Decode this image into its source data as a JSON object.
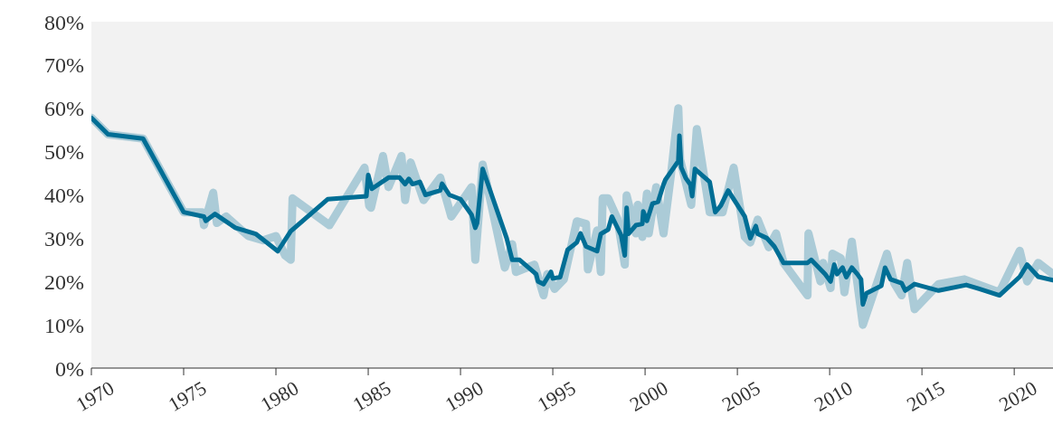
{
  "chart_data": {
    "type": "line",
    "xlim": [
      1970,
      2022.1
    ],
    "ylim": [
      0,
      80
    ],
    "xticks": [
      1970,
      1975,
      1980,
      1985,
      1990,
      1995,
      2000,
      2005,
      2010,
      2015,
      2020
    ],
    "yticks": [
      {
        "value": 0,
        "label": "0%"
      },
      {
        "value": 10,
        "label": "10%"
      },
      {
        "value": 20,
        "label": "20%"
      },
      {
        "value": 30,
        "label": "30%"
      },
      {
        "value": 40,
        "label": "40%"
      },
      {
        "value": 50,
        "label": "50%"
      },
      {
        "value": 60,
        "label": "60%"
      },
      {
        "value": 70,
        "label": "70%"
      },
      {
        "value": 80,
        "label": "80%"
      }
    ],
    "series": [
      {
        "color": "#abcbd7",
        "x": [
          1970,
          1970.9,
          1972.8,
          1975,
          1976,
          1976.1,
          1976.6,
          1976.8,
          1977.3,
          1978.5,
          1979.3,
          1980,
          1980.5,
          1980.8,
          1980.9,
          1982.9,
          1984.8,
          1985.05,
          1985.15,
          1985.8,
          1986.1,
          1986.8,
          1987,
          1987.3,
          1988,
          1988.9,
          1989.5,
          1990.6,
          1990.8,
          1991.2,
          1992.4,
          1992.8,
          1993,
          1994,
          1994.5,
          1994.7,
          1995.1,
          1995.6,
          1996.3,
          1996.8,
          1996.9,
          1997.4,
          1997.6,
          1997.7,
          1998,
          1998.5,
          1998.9,
          1999,
          1999.5,
          1999.6,
          1999.85,
          2000.1,
          2000.2,
          2000.6,
          2001,
          2001.4,
          2001.8,
          2001.9,
          2002.5,
          2002.8,
          2003.5,
          2004.2,
          2004.8,
          2005.4,
          2005.7,
          2006.1,
          2006.7,
          2007.1,
          2007.5,
          2008.8,
          2008.85,
          2009.5,
          2009.65,
          2010.05,
          2010.15,
          2010.6,
          2010.8,
          2011.2,
          2011.8,
          2013.1,
          2013.5,
          2013.9,
          2014.2,
          2014.6,
          2015.9,
          2017.3,
          2019.2,
          2020.3,
          2020.7,
          2021.3,
          2022.1
        ],
        "values": [
          57.8,
          54,
          53,
          36,
          36,
          33,
          40.5,
          33.5,
          35,
          30.5,
          29.5,
          30.5,
          26,
          25,
          39.2,
          33,
          46.3,
          37.5,
          37,
          49,
          41.8,
          49,
          38.8,
          47.5,
          38.8,
          44,
          35,
          41.8,
          25,
          47,
          23.2,
          28.6,
          22.2,
          23.9,
          16.8,
          21.7,
          18.3,
          20.5,
          33.9,
          33.3,
          22.8,
          31.8,
          22.2,
          39.2,
          39.2,
          34.5,
          23.9,
          39.9,
          31.1,
          37.7,
          30.3,
          40.3,
          31.1,
          41.8,
          31.1,
          44.6,
          60,
          48.2,
          37.7,
          55.2,
          36,
          36,
          46.3,
          30.3,
          29,
          34.3,
          27.9,
          31.1,
          24.3,
          16.8,
          31.1,
          20,
          24.3,
          18.5,
          26.4,
          25.4,
          17.5,
          29.2,
          10,
          26.4,
          19.6,
          16.8,
          24.3,
          13.6,
          19.4,
          20.5,
          17.5,
          27.1,
          20,
          24.3,
          21.7
        ]
      },
      {
        "color": "#006e95",
        "x": [
          1970,
          1970.9,
          1972.8,
          1975,
          1976.1,
          1976.2,
          1976.7,
          1977.8,
          1978.9,
          1980.1,
          1980.8,
          1982.8,
          1984.9,
          1985,
          1985.2,
          1986.1,
          1986.7,
          1987,
          1987.2,
          1987.4,
          1987.8,
          1988.1,
          1988.9,
          1989,
          1989.4,
          1990,
          1990.6,
          1990.8,
          1990.9,
          1991.2,
          1992.5,
          1992.8,
          1993.2,
          1994.1,
          1994.2,
          1994.5,
          1994.9,
          1995,
          1995.4,
          1995.8,
          1996.3,
          1996.5,
          1996.8,
          1997.4,
          1997.6,
          1998,
          1998.2,
          1998.7,
          1998.9,
          1999,
          1999.1,
          1999.5,
          1999.85,
          1999.9,
          2000.1,
          2000.4,
          2000.7,
          2001,
          2001.1,
          2001.8,
          2001.86,
          2001.96,
          2002.2,
          2002.45,
          2002.55,
          2002.7,
          2003.5,
          2003.8,
          2004.1,
          2004.5,
          2005.4,
          2005.7,
          2006,
          2006.1,
          2006.6,
          2007,
          2007.5,
          2008.8,
          2009,
          2009.75,
          2010.05,
          2010.25,
          2010.4,
          2010.7,
          2010.9,
          2011.2,
          2011.5,
          2011.7,
          2011.8,
          2012,
          2012.8,
          2013,
          2013.3,
          2013.9,
          2014.1,
          2014.6,
          2015.9,
          2017.4,
          2018.1,
          2019.2,
          2020.3,
          2020.7,
          2021.3,
          2022.1
        ],
        "values": [
          57.8,
          54,
          53,
          36,
          35,
          34,
          35.6,
          32.4,
          31,
          27,
          31.6,
          39,
          39.7,
          44.6,
          41.4,
          44,
          44,
          42.5,
          43.7,
          42.5,
          43,
          40,
          41,
          42.6,
          40,
          39,
          35.4,
          32.4,
          33.5,
          46,
          30,
          25,
          25,
          21.7,
          20,
          19.4,
          22.2,
          20.7,
          21,
          27.3,
          29,
          31.1,
          28.1,
          27,
          31,
          32,
          35,
          30.7,
          26,
          37,
          31,
          33,
          33.3,
          36.2,
          34,
          38,
          38.4,
          42.4,
          43.5,
          47.8,
          53.7,
          46.3,
          43.9,
          42.4,
          39.7,
          46,
          43,
          36,
          37.5,
          41,
          35,
          30,
          32.8,
          31,
          30,
          28.1,
          24.3,
          24.3,
          25,
          21.7,
          20,
          23.9,
          21.7,
          23.2,
          21,
          23.2,
          21.7,
          20.5,
          14.7,
          17.3,
          19,
          23.2,
          20.5,
          19.6,
          17.9,
          19.4,
          17.9,
          19.2,
          18.3,
          16.8,
          21.1,
          23.9,
          21.1,
          20.3
        ]
      }
    ]
  }
}
